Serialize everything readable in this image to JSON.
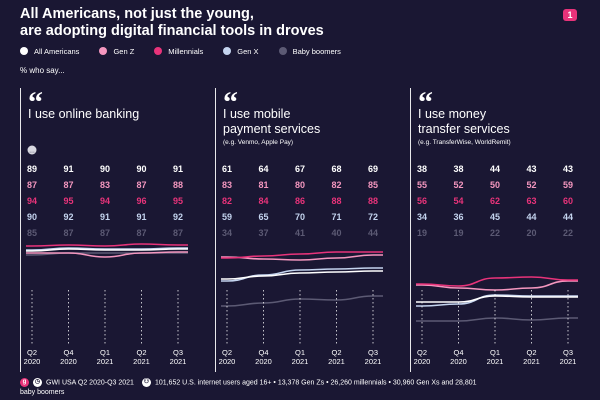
{
  "header": {
    "title_line1": "All Americans, not just the young,",
    "title_line2": "are adopting digital financial tools in droves",
    "badge": "1"
  },
  "legend": {
    "items": [
      {
        "label": "All Americans",
        "color": "#ffffff"
      },
      {
        "label": "Gen Z",
        "color": "#f497bf"
      },
      {
        "label": "Millennials",
        "color": "#e8337a"
      },
      {
        "label": "Gen X",
        "color": "#c4d4ef"
      },
      {
        "label": "Baby boomers",
        "color": "#5c5a74"
      }
    ]
  },
  "subtitle": "% who say...",
  "footer": {
    "source": "GWI USA Q2 2020-Q3 2021",
    "sample_line1": "101,652 U.S. internet users aged 16+ • 13,378 Gen Zs • 26,260 millennials • 30,960 Gen Xs and 28,801",
    "sample_line2": "baby boomers",
    "icon1": "gwi-logo-icon",
    "icon2": "calendar-icon",
    "icon3": "people-icon"
  },
  "chart_data": [
    {
      "type": "line",
      "quote_mark": "“",
      "title": "I use online banking",
      "title_lines": [
        "I use online banking"
      ],
      "note": "",
      "x": [
        "Q2 2020",
        "Q4 2020",
        "Q1 2021",
        "Q2 2021",
        "Q3 2021"
      ],
      "x_lines": [
        [
          "Q2",
          "2020"
        ],
        [
          "Q4",
          "2020"
        ],
        [
          "Q1",
          "2021"
        ],
        [
          "Q2",
          "2021"
        ],
        [
          "Q3",
          "2021"
        ]
      ],
      "ylim": [
        0,
        100
      ],
      "series": [
        {
          "name": "All Americans",
          "color": "#ffffff",
          "values": [
            89,
            91,
            90,
            90,
            91
          ]
        },
        {
          "name": "Gen Z",
          "color": "#f497bf",
          "values": [
            87,
            87,
            83,
            87,
            88
          ]
        },
        {
          "name": "Millennials",
          "color": "#e8337a",
          "values": [
            94,
            95,
            94,
            96,
            95
          ]
        },
        {
          "name": "Gen X",
          "color": "#c4d4ef",
          "values": [
            90,
            92,
            91,
            91,
            92
          ]
        },
        {
          "name": "Baby boomers",
          "color": "#5c5a74",
          "values": [
            85,
            87,
            87,
            87,
            87
          ]
        }
      ]
    },
    {
      "type": "line",
      "quote_mark": "“",
      "title": "I use mobile payment services",
      "title_lines": [
        "I use mobile",
        "payment services"
      ],
      "note": "(e.g. Venmo, Apple Pay)",
      "x": [
        "Q2 2020",
        "Q4 2020",
        "Q1 2021",
        "Q2 2021",
        "Q3 2021"
      ],
      "x_lines": [
        [
          "Q2",
          "2020"
        ],
        [
          "Q4",
          "2020"
        ],
        [
          "Q1",
          "2021"
        ],
        [
          "Q2",
          "2021"
        ],
        [
          "Q3",
          "2021"
        ]
      ],
      "ylim": [
        0,
        100
      ],
      "series": [
        {
          "name": "All Americans",
          "color": "#ffffff",
          "values": [
            61,
            64,
            67,
            68,
            69
          ]
        },
        {
          "name": "Gen Z",
          "color": "#f497bf",
          "values": [
            83,
            81,
            80,
            82,
            85
          ]
        },
        {
          "name": "Millennials",
          "color": "#e8337a",
          "values": [
            82,
            84,
            86,
            88,
            88
          ]
        },
        {
          "name": "Gen X",
          "color": "#c4d4ef",
          "values": [
            59,
            65,
            70,
            71,
            72
          ]
        },
        {
          "name": "Baby boomers",
          "color": "#5c5a74",
          "values": [
            34,
            37,
            41,
            40,
            44
          ]
        }
      ]
    },
    {
      "type": "line",
      "quote_mark": "“",
      "title": "I use money transfer services",
      "title_lines": [
        "I use money",
        "transfer services"
      ],
      "note": "(e.g. TransferWise, WorldRemit)",
      "x": [
        "Q2 2020",
        "Q4 2020",
        "Q1 2021",
        "Q2 2021",
        "Q3 2021"
      ],
      "x_lines": [
        [
          "Q2",
          "2020"
        ],
        [
          "Q4",
          "2020"
        ],
        [
          "Q1",
          "2021"
        ],
        [
          "Q2",
          "2021"
        ],
        [
          "Q3",
          "2021"
        ]
      ],
      "ylim": [
        0,
        100
      ],
      "series": [
        {
          "name": "All Americans",
          "color": "#ffffff",
          "values": [
            38,
            38,
            44,
            43,
            43
          ]
        },
        {
          "name": "Gen Z",
          "color": "#f497bf",
          "values": [
            55,
            52,
            50,
            52,
            59
          ]
        },
        {
          "name": "Millennials",
          "color": "#e8337a",
          "values": [
            56,
            54,
            62,
            63,
            60
          ]
        },
        {
          "name": "Gen X",
          "color": "#c4d4ef",
          "values": [
            34,
            36,
            45,
            44,
            44
          ]
        },
        {
          "name": "Baby boomers",
          "color": "#5c5a74",
          "values": [
            19,
            19,
            22,
            20,
            22
          ]
        }
      ]
    }
  ]
}
